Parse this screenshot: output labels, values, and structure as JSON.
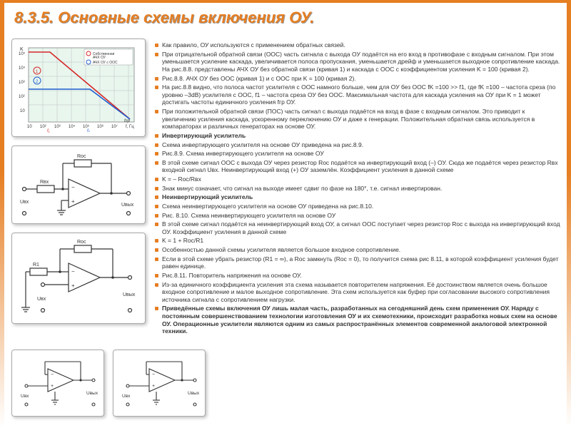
{
  "title": "8.3.5. Основные схемы включения ОУ.",
  "colors": {
    "accent": "#e67e22",
    "text": "#333333",
    "chart_red": "#d62728",
    "chart_blue": "#1f5fd0",
    "grid": "#bfbfbf",
    "mint": "#e8f6ee"
  },
  "chart": {
    "type": "line",
    "xlabel": "f, Гц",
    "ylabel": "K",
    "yticks": [
      "10",
      "10²",
      "10³",
      "10⁴",
      "10⁵"
    ],
    "xticks": [
      "10",
      "10²",
      "10³",
      "10⁴",
      "10⁵",
      "10⁶",
      "10⁷"
    ],
    "legend": [
      "Собственная АЧХ ОУ",
      "АЧХ ОУ с ООС"
    ],
    "series": [
      {
        "name": "1",
        "color": "#d62728",
        "points": [
          [
            0,
            0
          ],
          [
            35,
            0
          ],
          [
            145,
            98
          ]
        ]
      },
      {
        "name": "2",
        "color": "#1f5fd0",
        "points": [
          [
            0,
            55
          ],
          [
            90,
            55
          ],
          [
            145,
            98
          ]
        ]
      }
    ],
    "markers": [
      "f₁",
      "fₖ",
      "fгр"
    ],
    "grid_color": "#bfbfbf",
    "bg": "#e8f6ee"
  },
  "paragraphs": [
    "Как правило, ОУ используются с применением обратных связей.",
    "При отрицательной обратной связи (ООС) часть сигнала с выхода ОУ подаётся на его вход в противофазе с входным сигналом. При этом уменьшается усиление каскада, увеличивается полоса пропускания, уменьшается дрейф и уменьшается выходное сопротивление каскада. На рис.8.8. представлены АЧХ ОУ без обратной связи (кривая 1) и каскада с ООС с коэффициентом усиления K = 100 (кривая 2).",
    "Рис.8.8. АЧХ ОУ без ООС (кривая 1) и с ООС при K = 100 (кривая 2).",
    "На рис.8.8 видно, что полоса частот усилителя с ООС намного больше, чем для ОУ без ООС fK =100 >> f1, где fK =100 – частота среза (по уровню –3dB) усилителя с ООС, f1 – частота среза ОУ без ООС. Максимальная частота для каскада усиления на ОУ при  K = 1 может достигать частоты единичного усиления fгр ОУ.",
    "При положительной обратной связи (ПОС) часть сигнал с выхода подаётся на вход в фазе с входным сигналом. Это приводит к увеличению усиления каскада, ускоренному переключению ОУ и даже к генерации. Положительная обратная связь используется в компараторах и различных генераторах на основе ОУ.",
    "<b>Инвертирующий усилитель</b>",
    "Схема инвертирующего усилителя на основе ОУ приведена на рис.8.9.",
    "Рис.8.9. Схема инвертирующего усилителя на основе ОУ",
    "В этой схеме сигнал ООС с выхода ОУ через резистор Rос подаётся на инвертирующий вход (–) ОУ. Сюда же подаётся через резистор Rвх входной сигнал Uвх. Неинвертирующий вход (+) ОУ заземлён. Коэффициент усиления в данной схеме",
    "K = – Rос/Rвх",
    "Знак минус означает, что сигнал на выходе имеет сдвиг по фазе на 180°, т.е. сигнал инвертирован.",
    "<b>Неинвертирующий усилитель</b>",
    "Схема неинвертирующего усилителя на основе ОУ приведена на рис.8.10.",
    "Рис. 8.10. Схема неинвертирующего усилителя на основе ОУ",
    "В этой схеме сигнал подаётся на неинвертирующий вход ОУ, а сигнал ООС поступает через резистор Rос с выхода на инвертирующий вход ОУ. Коэффициент усиления в данной схеме",
    "K = 1 + Rос/R1",
    "Особенностью данной схемы усилителя является большое входное сопротивление.",
    "Если в этой схеме убрать резистор (R1 = ∞), а Rос замкнуть (Rос = 0), то получится схема рис 8.11, в которой коэффициент усиления будет равен единице.",
    "Рис.8.11. Повторитель напряжения на основе ОУ.",
    "Из-за единичного коэффициента усиления эта схема называется повторителем напряжения. Её достоинством является очень большое входное сопротивление и малое выходное сопротивление. Эта схем используется как буфер при согласовании высокого сопротивления источника сигнала с сопротивлением нагрузки.",
    "<b>Приведённые схемы включения ОУ лишь малая часть, разработанных на сегодняшний день схем применения ОУ. Наряду с постоянным совершенствованием технологии изготовления ОУ и их схемотехники, происходит разработка новых схем на основе ОУ. Операционные усилители являются одним из самых распространённых элементов современной аналоговой электронной техники.</b>"
  ],
  "labels": {
    "uin": "Uвх",
    "uout": "Uвых",
    "roc": "Rос",
    "rin": "Rвх",
    "r1": "R1"
  }
}
